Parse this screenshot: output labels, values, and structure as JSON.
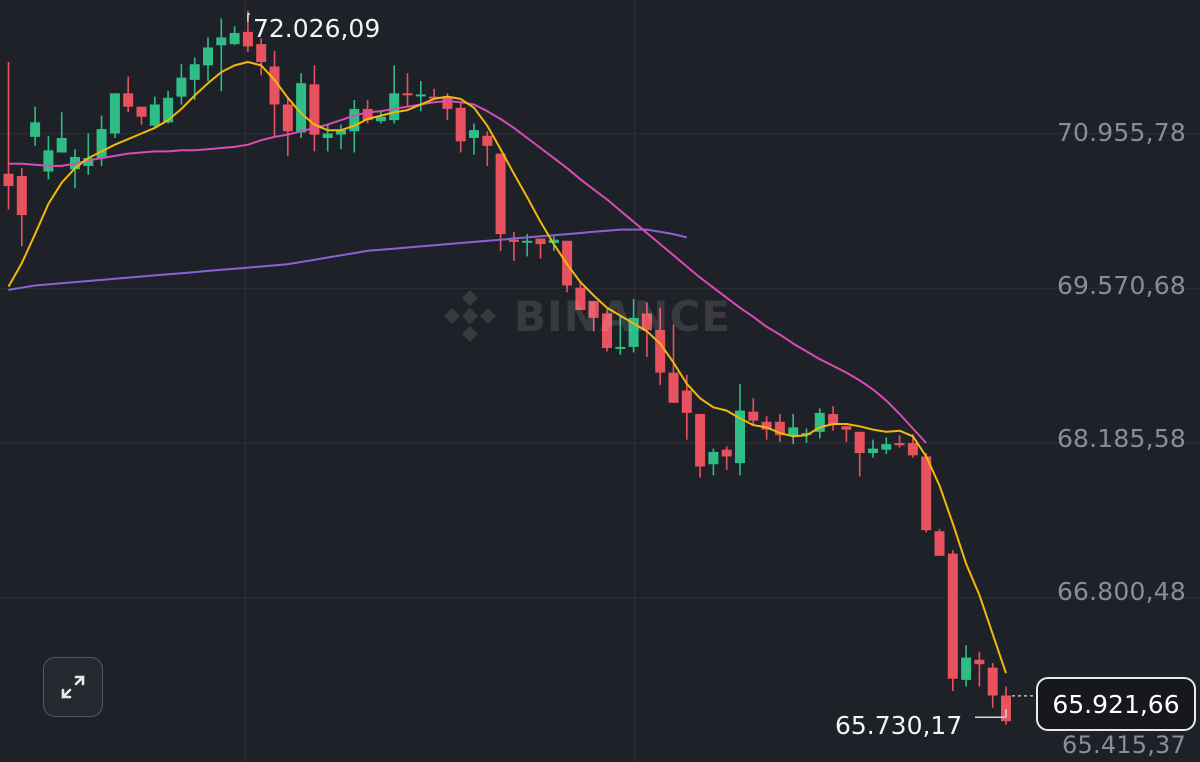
{
  "chart_data": {
    "type": "candlestick",
    "title": "",
    "watermark": "BINANCE",
    "y_axis": {
      "ticks": [
        70955.78,
        69570.68,
        68185.58,
        66800.48,
        65415.37
      ],
      "tick_labels": [
        "70.955,78",
        "69.570,68",
        "68.185,58",
        "66.800,48",
        "65.415,37"
      ],
      "ylim": [
        65330,
        72150
      ]
    },
    "grid": true,
    "colors": {
      "background": "#1f2128",
      "up": "#2ebd85",
      "down": "#e8525f",
      "ma_fast": "#f0b90b",
      "ma_mid": "#d94cb3",
      "ma_slow": "#8a63d2",
      "grid": "#2e3139"
    },
    "annotations": {
      "high": {
        "value": 72026.09,
        "label": "72.026,09"
      },
      "low": {
        "value": 65730.17,
        "label": "65.730,17"
      },
      "last_price": {
        "value": 65921.66,
        "label": "65.921,66"
      }
    },
    "candles": [
      [
        70595,
        70485,
        71595,
        70275
      ],
      [
        70575,
        70225,
        70645,
        69945
      ],
      [
        70925,
        71055,
        71195,
        70845
      ],
      [
        70615,
        70805,
        70935,
        70545
      ],
      [
        70785,
        70915,
        71145,
        70785
      ],
      [
        70635,
        70745,
        70815,
        70465
      ],
      [
        70665,
        70735,
        70955,
        70585
      ],
      [
        70735,
        70995,
        71115,
        70665
      ],
      [
        70955,
        71315,
        71315,
        70915
      ],
      [
        71315,
        71195,
        71465,
        71145
      ],
      [
        71195,
        71105,
        71185,
        71035
      ],
      [
        71025,
        71215,
        71285,
        71015
      ],
      [
        71055,
        71275,
        71335,
        71045
      ],
      [
        71285,
        71455,
        71575,
        71215
      ],
      [
        71435,
        71575,
        71635,
        71255
      ],
      [
        71565,
        71725,
        71815,
        71425
      ],
      [
        71745,
        71815,
        71985,
        71335
      ],
      [
        71755,
        71855,
        71915,
        71745
      ],
      [
        71865,
        71735,
        72055,
        71685
      ],
      [
        71755,
        71595,
        71805,
        71475
      ],
      [
        71555,
        71215,
        71695,
        70925
      ],
      [
        71215,
        70975,
        71275,
        70755
      ],
      [
        70965,
        71405,
        71495,
        70915
      ],
      [
        71395,
        70945,
        71565,
        70795
      ],
      [
        70915,
        70955,
        71035,
        70795
      ],
      [
        70945,
        70985,
        71035,
        70815
      ],
      [
        70975,
        71175,
        71255,
        70785
      ],
      [
        71175,
        71075,
        71255,
        71045
      ],
      [
        71065,
        71105,
        71165,
        71045
      ],
      [
        71075,
        71315,
        71565,
        71045
      ],
      [
        71315,
        71305,
        71495,
        71195
      ],
      [
        71305,
        71305,
        71425,
        71155
      ],
      [
        71285,
        71275,
        71355,
        71265
      ],
      [
        71285,
        71175,
        71315,
        71075
      ],
      [
        71185,
        70885,
        71235,
        70785
      ],
      [
        70915,
        70985,
        71045,
        70765
      ],
      [
        70935,
        70845,
        70975,
        70665
      ],
      [
        70775,
        70055,
        70775,
        69905
      ],
      [
        70005,
        69985,
        70075,
        69815
      ],
      [
        69985,
        69995,
        70055,
        69855
      ],
      [
        70015,
        69965,
        70015,
        69835
      ],
      [
        69975,
        70005,
        70035,
        69905
      ],
      [
        69995,
        69595,
        69995,
        69535
      ],
      [
        69575,
        69375,
        69625,
        69475
      ],
      [
        69455,
        69305,
        69455,
        69185
      ],
      [
        69345,
        69035,
        69385,
        69005
      ],
      [
        69045,
        69045,
        69315,
        68975
      ],
      [
        69045,
        69305,
        69475,
        68995
      ],
      [
        69345,
        69195,
        69445,
        68955
      ],
      [
        69195,
        68815,
        69395,
        68705
      ],
      [
        68815,
        68545,
        69245,
        68545
      ],
      [
        68655,
        68455,
        68795,
        68215
      ],
      [
        68445,
        67975,
        68445,
        67875
      ],
      [
        67995,
        68105,
        68135,
        67895
      ],
      [
        68125,
        68065,
        68155,
        67945
      ],
      [
        68005,
        68475,
        68715,
        67895
      ],
      [
        68465,
        68385,
        68585,
        68345
      ],
      [
        68375,
        68305,
        68425,
        68215
      ],
      [
        68375,
        68255,
        68445,
        68195
      ],
      [
        68255,
        68325,
        68445,
        68175
      ],
      [
        68265,
        68275,
        68315,
        68185
      ],
      [
        68285,
        68455,
        68495,
        68225
      ],
      [
        68445,
        68345,
        68515,
        68295
      ],
      [
        68335,
        68305,
        68335,
        68195
      ],
      [
        68285,
        68095,
        68285,
        67885
      ],
      [
        68095,
        68135,
        68215,
        68055
      ],
      [
        68125,
        68175,
        68235,
        68085
      ],
      [
        68185,
        68165,
        68255,
        68145
      ],
      [
        68185,
        68075,
        68265,
        68055
      ],
      [
        68065,
        67405,
        68095,
        67385
      ],
      [
        67395,
        67175,
        67415,
        67175
      ],
      [
        67195,
        66075,
        67225,
        65965
      ],
      [
        66065,
        66265,
        66375,
        66005
      ],
      [
        66245,
        66205,
        66315,
        66005
      ],
      [
        66175,
        65925,
        66215,
        65815
      ],
      [
        65925,
        65695,
        66005,
        65665
      ]
    ],
    "ma_fast": [
      69585,
      69795,
      70055,
      70325,
      70515,
      70645,
      70735,
      70795,
      70855,
      70905,
      70955,
      71005,
      71075,
      71175,
      71295,
      71405,
      71505,
      71565,
      71595,
      71565,
      71435,
      71275,
      71135,
      71035,
      70985,
      70985,
      71025,
      71085,
      71115,
      71145,
      71165,
      71215,
      71265,
      71285,
      71265,
      71185,
      71025,
      70815,
      70595,
      70385,
      70165,
      69965,
      69785,
      69625,
      69505,
      69395,
      69325,
      69255,
      69185,
      69075,
      68905,
      68715,
      68585,
      68505,
      68475,
      68405,
      68345,
      68325,
      68275,
      68245,
      68255,
      68325,
      68355,
      68355,
      68335,
      68305,
      68285,
      68295,
      68245,
      68065,
      67805,
      67465,
      67105,
      66825,
      66475,
      66125
    ],
    "ma_mid": [
      70685,
      70685,
      70675,
      70665,
      70665,
      70685,
      70715,
      70735,
      70755,
      70775,
      70785,
      70795,
      70795,
      70805,
      70805,
      70815,
      70825,
      70835,
      70855,
      70895,
      70925,
      70945,
      70975,
      71005,
      71035,
      71075,
      71115,
      71145,
      71155,
      71175,
      71195,
      71215,
      71235,
      71245,
      71235,
      71215,
      71155,
      71085,
      71005,
      70915,
      70825,
      70735,
      70645,
      70545,
      70455,
      70365,
      70265,
      70165,
      70065,
      69965,
      69865,
      69765,
      69665,
      69575,
      69485,
      69395,
      69315,
      69225,
      69155,
      69075,
      69005,
      68935,
      68875,
      68815,
      68745,
      68665,
      68565,
      68445,
      68315,
      68185
    ],
    "ma_slow": [
      69555,
      69575,
      69595,
      69605,
      69615,
      69625,
      69635,
      69645,
      69655,
      69665,
      69675,
      69685,
      69695,
      69705,
      69715,
      69725,
      69735,
      69745,
      69755,
      69765,
      69775,
      69785,
      69805,
      69825,
      69845,
      69865,
      69885,
      69905,
      69915,
      69925,
      69935,
      69945,
      69955,
      69965,
      69975,
      69985,
      69995,
      70005,
      70015,
      70025,
      70035,
      70045,
      70055,
      70065,
      70075,
      70085,
      70095,
      70095,
      70095,
      70075,
      70055,
      70025
    ]
  },
  "ui": {
    "expand_button": {
      "icon": "expand-arrows-icon"
    }
  }
}
